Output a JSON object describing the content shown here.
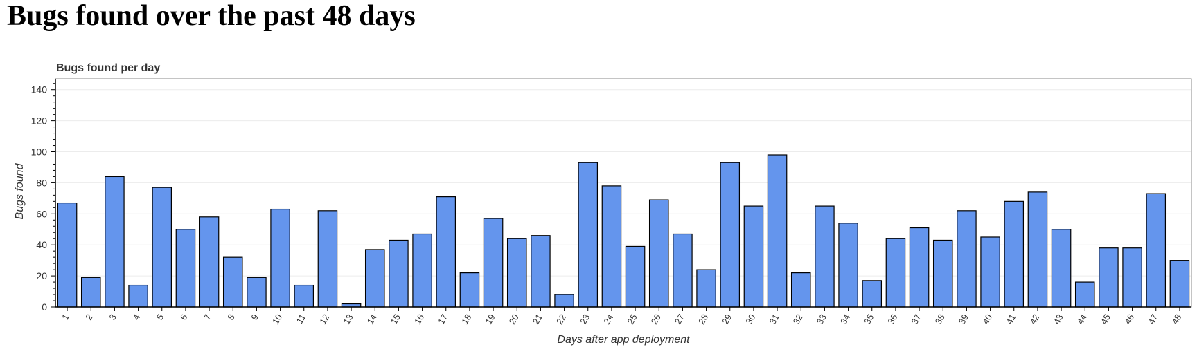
{
  "page": {
    "heading": "Bugs found over the past 48 days"
  },
  "chart_data": {
    "type": "bar",
    "title": "Bugs found per day",
    "xlabel": "Days after app deployment",
    "ylabel": "Bugs found",
    "ylim": [
      0,
      147
    ],
    "yticks": [
      0,
      20,
      40,
      60,
      80,
      100,
      120,
      140
    ],
    "grid": "horizontal",
    "bar_color": "#6495ED",
    "categories": [
      "1",
      "2",
      "3",
      "4",
      "5",
      "6",
      "7",
      "8",
      "9",
      "10",
      "11",
      "12",
      "13",
      "14",
      "15",
      "16",
      "17",
      "18",
      "19",
      "20",
      "21",
      "22",
      "23",
      "24",
      "25",
      "26",
      "27",
      "28",
      "29",
      "30",
      "31",
      "32",
      "33",
      "34",
      "35",
      "36",
      "37",
      "38",
      "39",
      "40",
      "41",
      "42",
      "43",
      "44",
      "45",
      "46",
      "47",
      "48"
    ],
    "values": [
      67,
      19,
      84,
      14,
      77,
      50,
      58,
      32,
      19,
      63,
      14,
      62,
      2,
      37,
      43,
      47,
      71,
      22,
      57,
      44,
      46,
      8,
      93,
      78,
      39,
      69,
      47,
      24,
      93,
      65,
      98,
      22,
      65,
      54,
      17,
      44,
      51,
      43,
      62,
      45,
      68,
      74,
      50,
      16,
      38,
      38,
      73,
      30
    ]
  }
}
